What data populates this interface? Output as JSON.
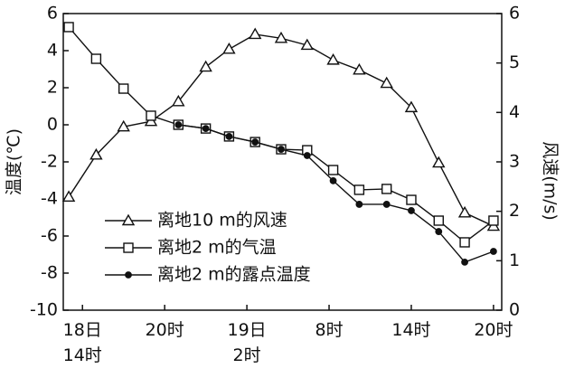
{
  "chart_data": {
    "type": "line",
    "x": [
      -1,
      1,
      3,
      5,
      7,
      9,
      10.7,
      12.6,
      14.5,
      16.4,
      18.3,
      20.2,
      22.2,
      24,
      26,
      27.9,
      30
    ],
    "xlim": [
      -1.4,
      30.6
    ],
    "xticks": [
      {
        "value": 0,
        "label": "18日\n14时"
      },
      {
        "value": 6,
        "label": "20时"
      },
      {
        "value": 12,
        "label": "19日\n2时"
      },
      {
        "value": 18,
        "label": "8时"
      },
      {
        "value": 24,
        "label": "14时"
      },
      {
        "value": 30,
        "label": "20时"
      }
    ],
    "ylabel": "温度(℃)",
    "ylim": [
      -10,
      6
    ],
    "yticks": [
      -10,
      -8,
      -6,
      -4,
      -2,
      0,
      2,
      4,
      6
    ],
    "y2label": "风速(m/s)",
    "y2lim": [
      0,
      6
    ],
    "y2ticks": [
      0,
      1,
      2,
      3,
      4,
      5,
      6
    ],
    "series": [
      {
        "name": "离地10 m的风速",
        "color": "#111111",
        "marker": "triangle",
        "axis": "y2",
        "values": [
          2.29,
          3.14,
          3.71,
          3.82,
          4.22,
          4.92,
          5.28,
          5.58,
          5.5,
          5.36,
          5.06,
          4.86,
          4.59,
          4.1,
          2.98,
          1.97,
          1.7
        ]
      },
      {
        "name": "离地2 m的气温",
        "color": "#111111",
        "marker": "square",
        "values": [
          5.27,
          3.56,
          1.95,
          0.49,
          0,
          -0.2,
          -0.63,
          -0.93,
          -1.32,
          -1.37,
          -2.44,
          -3.51,
          -3.46,
          -4.05,
          -5.17,
          -6.34,
          -5.17
        ]
      },
      {
        "name": "离地2 m的露点温度",
        "color": "#111111",
        "marker": "dot",
        "values": [
          null,
          null,
          null,
          null,
          0,
          -0.2,
          -0.63,
          -0.93,
          -1.32,
          -1.66,
          -3.02,
          -4.29,
          -4.29,
          -4.63,
          -5.76,
          -7.41,
          -6.83
        ]
      }
    ]
  }
}
